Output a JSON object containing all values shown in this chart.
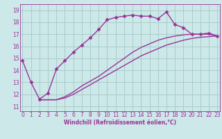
{
  "line1_x": [
    0,
    1,
    2,
    3,
    4,
    5,
    6,
    7,
    8,
    9,
    10,
    11,
    12,
    13,
    14,
    15,
    16,
    17,
    18,
    19,
    20,
    21,
    22,
    23
  ],
  "line1_y": [
    14.8,
    13.0,
    11.6,
    12.1,
    14.1,
    14.8,
    15.5,
    16.1,
    16.7,
    17.4,
    18.2,
    18.4,
    18.5,
    18.6,
    18.5,
    18.5,
    18.3,
    18.85,
    17.8,
    17.55,
    17.0,
    17.0,
    17.1,
    16.85
  ],
  "line2_x": [
    2,
    3,
    4,
    5,
    6,
    7,
    8,
    9,
    10,
    11,
    12,
    13,
    14,
    15,
    16,
    17,
    18,
    19,
    20,
    21,
    22,
    23
  ],
  "line2_y": [
    11.55,
    11.55,
    11.55,
    11.8,
    12.2,
    12.7,
    13.1,
    13.5,
    14.0,
    14.5,
    15.0,
    15.5,
    15.9,
    16.2,
    16.5,
    16.7,
    16.85,
    16.95,
    17.0,
    17.0,
    17.0,
    16.85
  ],
  "line3_x": [
    2,
    3,
    4,
    5,
    6,
    7,
    8,
    9,
    10,
    11,
    12,
    13,
    14,
    15,
    16,
    17,
    18,
    19,
    20,
    21,
    22,
    23
  ],
  "line3_y": [
    11.55,
    11.55,
    11.55,
    11.7,
    12.0,
    12.4,
    12.8,
    13.2,
    13.6,
    14.0,
    14.4,
    14.8,
    15.2,
    15.5,
    15.8,
    16.1,
    16.3,
    16.5,
    16.65,
    16.75,
    16.8,
    16.85
  ],
  "line_color": "#993399",
  "bg_color": "#cce8e8",
  "grid_color": "#aacccc",
  "axis_color": "#993399",
  "xlabel": "Windchill (Refroidissement éolien,°C)",
  "xlabel_color": "#993399",
  "yticks": [
    11,
    12,
    13,
    14,
    15,
    16,
    17,
    18,
    19
  ],
  "xticks": [
    0,
    1,
    2,
    3,
    4,
    5,
    6,
    7,
    8,
    9,
    10,
    11,
    12,
    13,
    14,
    15,
    16,
    17,
    18,
    19,
    20,
    21,
    22,
    23
  ],
  "xlim": [
    -0.3,
    23.3
  ],
  "ylim": [
    10.6,
    19.5
  ],
  "marker": "D",
  "markersize": 2.5,
  "linewidth": 1.0,
  "tick_fontsize": 5.5,
  "xlabel_fontsize": 5.5
}
